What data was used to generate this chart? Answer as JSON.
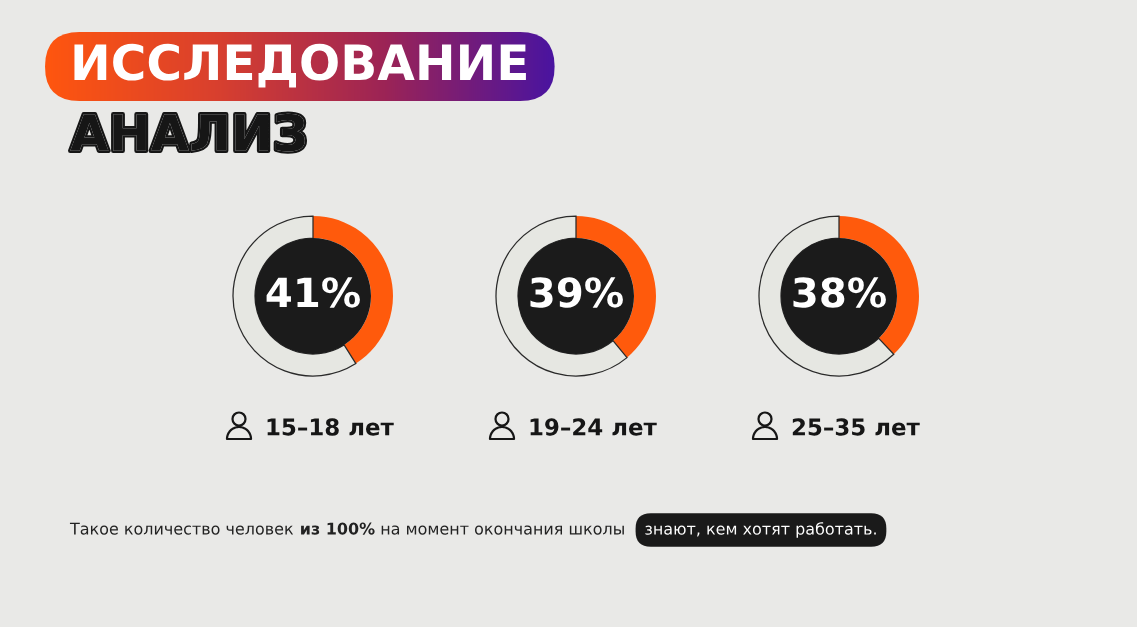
{
  "chart_data": [
    {
      "type": "other",
      "title": "ИССЛЕДОВАНИЕ",
      "subtitle": "АНАЛИЗ",
      "annotations": [
        "Такое количество человек",
        "из 100%",
        "на момент окончания школы",
        "знают, кем хотят работать."
      ]
    },
    {
      "type": "donut",
      "title": "15–18 лет",
      "categories": [
        null,
        null
      ],
      "values": [
        41,
        59
      ],
      "colors": [
        "#ff5a0c",
        "#e6e7e2"
      ],
      "value_labels": [
        "41%",
        null
      ]
    },
    {
      "type": "donut",
      "title": "19–24 лет",
      "categories": [
        null,
        null
      ],
      "values": [
        39,
        61
      ],
      "colors": [
        "#ff5a0c",
        "#e6e7e2"
      ],
      "value_labels": [
        "39%",
        null
      ]
    },
    {
      "type": "donut",
      "title": "25–35 лет",
      "categories": [
        null,
        null
      ],
      "values": [
        38,
        62
      ],
      "colors": [
        "#ff5a0c",
        "#e6e7e2"
      ],
      "value_labels": [
        "38%",
        null
      ]
    }
  ]
}
